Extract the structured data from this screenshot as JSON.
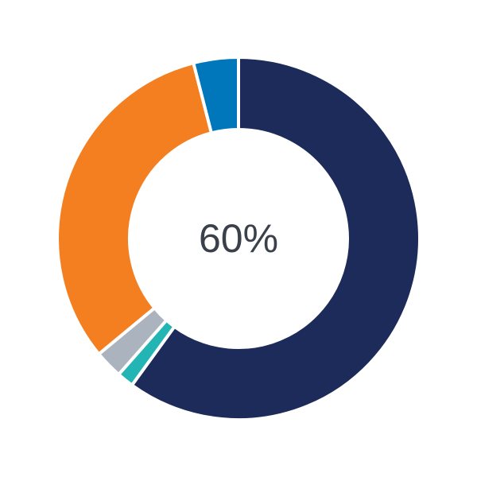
{
  "chart_data": {
    "type": "pie",
    "donut": true,
    "center_label": "60%",
    "slices": [
      {
        "value": 60,
        "color": "#1c2b5a"
      },
      {
        "value": 1.5,
        "color": "#22b5b3"
      },
      {
        "value": 2.5,
        "color": "#aab3be"
      },
      {
        "value": 32,
        "color": "#f47f20"
      },
      {
        "value": 4,
        "color": "#0077bb"
      }
    ],
    "start": "top",
    "direction": "clockwise"
  }
}
